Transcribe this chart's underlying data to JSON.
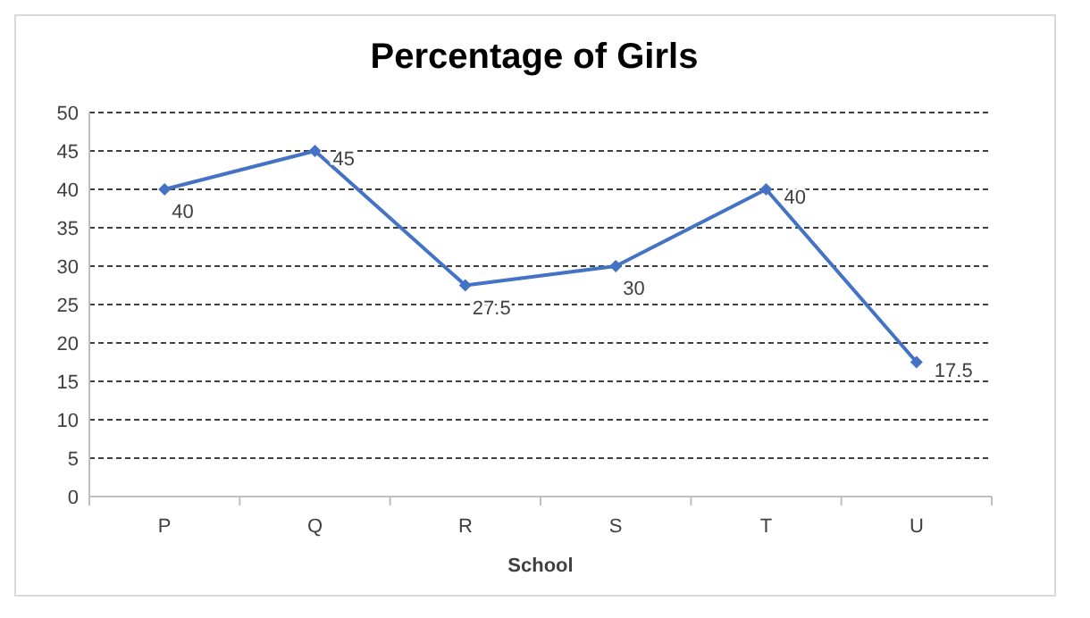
{
  "chart_data": {
    "type": "line",
    "title": "Percentage of Girls",
    "xlabel": "School",
    "categories": [
      "P",
      "Q",
      "R",
      "S",
      "T",
      "U"
    ],
    "series": [
      {
        "color": "#4472c4",
        "values": [
          40,
          45,
          27.5,
          30,
          40,
          17.5
        ]
      }
    ],
    "ylim": [
      0,
      50
    ],
    "yticks": [
      0,
      5,
      10,
      15,
      20,
      25,
      30,
      35,
      40,
      45,
      50
    ],
    "grid": "y",
    "marker": "diamond",
    "data_labels": true
  }
}
